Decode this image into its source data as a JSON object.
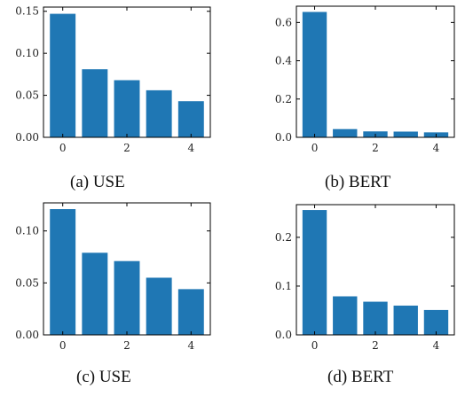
{
  "style": {
    "bar_color": "#1f77b4",
    "axis_color": "#000000"
  },
  "chart_data": [
    {
      "type": "bar",
      "caption": "(a) USE",
      "categories": [
        0,
        1,
        2,
        3,
        4
      ],
      "values": [
        0.147,
        0.081,
        0.068,
        0.056,
        0.043
      ],
      "xticks": [
        0,
        2,
        4
      ],
      "yticks": [
        0.0,
        0.05,
        0.1,
        0.15
      ],
      "ytick_labels": [
        "0.00",
        "0.05",
        "0.10",
        "0.15"
      ],
      "ylim": [
        0,
        0.155
      ],
      "xlabel": "",
      "ylabel": "",
      "title": ""
    },
    {
      "type": "bar",
      "caption": "(b) BERT",
      "categories": [
        0,
        1,
        2,
        3,
        4
      ],
      "values": [
        0.655,
        0.043,
        0.031,
        0.03,
        0.026
      ],
      "xticks": [
        0,
        2,
        4
      ],
      "yticks": [
        0.0,
        0.2,
        0.4,
        0.6
      ],
      "ytick_labels": [
        "0.0",
        "0.2",
        "0.4",
        "0.6"
      ],
      "ylim": [
        0,
        0.685
      ],
      "xlabel": "",
      "ylabel": "",
      "title": ""
    },
    {
      "type": "bar",
      "caption": "(c) USE",
      "categories": [
        0,
        1,
        2,
        3,
        4
      ],
      "values": [
        0.121,
        0.079,
        0.071,
        0.055,
        0.044
      ],
      "xticks": [
        0,
        2,
        4
      ],
      "yticks": [
        0.0,
        0.05,
        0.1
      ],
      "ytick_labels": [
        "0.00",
        "0.05",
        "0.10"
      ],
      "ylim": [
        0,
        0.127
      ],
      "xlabel": "",
      "ylabel": "",
      "title": ""
    },
    {
      "type": "bar",
      "caption": "(d) BERT",
      "categories": [
        0,
        1,
        2,
        3,
        4
      ],
      "values": [
        0.256,
        0.079,
        0.068,
        0.06,
        0.051
      ],
      "xticks": [
        0,
        2,
        4
      ],
      "yticks": [
        0.0,
        0.1,
        0.2
      ],
      "ytick_labels": [
        "0.0",
        "0.1",
        "0.2"
      ],
      "ylim": [
        0,
        0.267
      ],
      "xlabel": "",
      "ylabel": "",
      "title": ""
    }
  ]
}
